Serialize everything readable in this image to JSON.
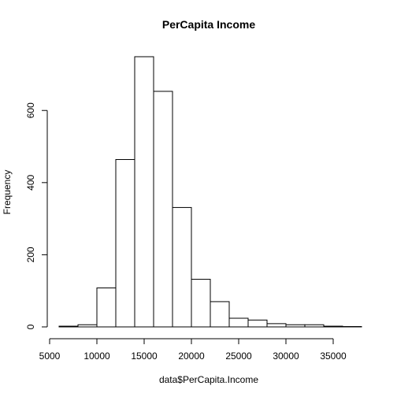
{
  "chart_data": {
    "type": "bar",
    "title": "PerCapita Income",
    "xlabel": "data$PerCapita.Income",
    "ylabel": "Frequency",
    "bin_edges": [
      6000,
      8000,
      10000,
      12000,
      14000,
      16000,
      18000,
      20000,
      22000,
      24000,
      26000,
      28000,
      30000,
      32000,
      34000,
      36000,
      38000
    ],
    "values": [
      2,
      6,
      108,
      464,
      749,
      653,
      331,
      132,
      70,
      24,
      19,
      9,
      6,
      6,
      2,
      1
    ],
    "xlim": [
      6000,
      38000
    ],
    "ylim": [
      0,
      749
    ],
    "x_ticks": [
      5000,
      10000,
      15000,
      20000,
      25000,
      30000,
      35000
    ],
    "y_ticks": [
      0,
      200,
      400,
      600
    ],
    "grid": false
  }
}
